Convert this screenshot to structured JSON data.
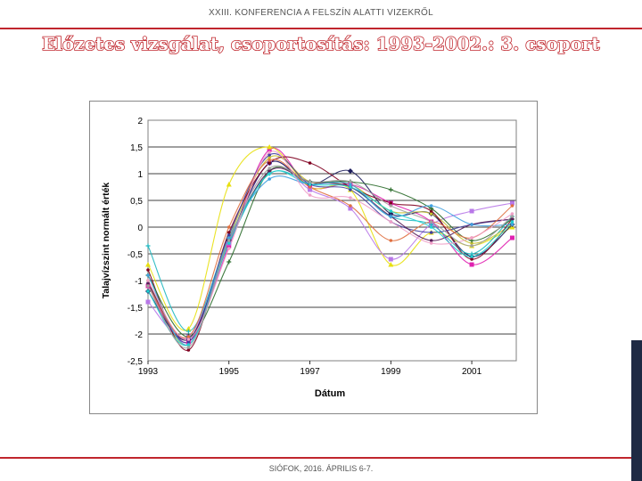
{
  "header": {
    "text": "XXIII. KONFERENCIA A FELSZÍN ALATTI VIZEKRŐL"
  },
  "title": "Előzetes vizsgálat, csoportosítás: 1993-2002.: 3. csoport",
  "footer": {
    "text": "SIÓFOK, 2016. ÁPRILIS 6-7."
  },
  "colors": {
    "accent": "#c0262d",
    "side_bar": "#1f2a44"
  },
  "chart_data": {
    "type": "line",
    "title": "",
    "xlabel": "Dátum",
    "ylabel": "Talajvízszint normált érték",
    "xlim": [
      1993,
      2002.1
    ],
    "ylim": [
      -2.5,
      2
    ],
    "x_ticks": [
      1993,
      1995,
      1997,
      1999,
      2001
    ],
    "x_tick_labels": [
      "1993",
      "1995",
      "1997",
      "1999",
      "2001"
    ],
    "y_ticks": [
      2,
      1.5,
      1,
      0.5,
      0,
      -0.5,
      -1,
      -1.5,
      -2,
      -2.5
    ],
    "y_tick_labels": [
      "2",
      "1,5",
      "1",
      "0,5",
      "0",
      "-0,5",
      "-1",
      "-1,5",
      "-2",
      "-2,5"
    ],
    "grid": "horizontal",
    "legend": "none",
    "x": [
      1993,
      1994,
      1995,
      1996,
      1997,
      1998,
      1999,
      2000,
      2001,
      2002
    ],
    "series": [
      {
        "values": [
          -1.1,
          -2.15,
          -0.35,
          1.45,
          0.75,
          0.8,
          0.45,
          0.1,
          -0.7,
          -0.2
        ],
        "color": "#e020b0",
        "marker": "square"
      },
      {
        "values": [
          -0.7,
          -1.9,
          0.8,
          1.5,
          0.75,
          0.7,
          -0.7,
          -0.1,
          -0.35,
          0.0
        ],
        "color": "#e8e010",
        "marker": "triangle"
      },
      {
        "values": [
          -1.4,
          -2.05,
          -0.3,
          1.2,
          0.7,
          0.35,
          -0.6,
          0.05,
          0.3,
          0.45
        ],
        "color": "#b878e8",
        "marker": "square"
      },
      {
        "values": [
          -1.2,
          -2.1,
          -0.25,
          1.2,
          0.8,
          1.05,
          0.25,
          0.25,
          -0.55,
          0.05
        ],
        "color": "#1c1c5c",
        "marker": "diamond"
      },
      {
        "values": [
          -0.35,
          -1.95,
          -0.2,
          1.0,
          0.85,
          0.75,
          0.2,
          0.05,
          -0.5,
          0.2
        ],
        "color": "#20b8c0",
        "marker": "cross"
      },
      {
        "values": [
          -1.0,
          -2.2,
          -0.2,
          1.3,
          0.85,
          0.8,
          0.3,
          0.25,
          -0.3,
          0.05
        ],
        "color": "#c8c030",
        "marker": "circle"
      },
      {
        "values": [
          -0.8,
          -2.3,
          -0.1,
          1.2,
          1.2,
          0.75,
          0.45,
          0.3,
          -0.6,
          0.15
        ],
        "color": "#800020",
        "marker": "circle"
      },
      {
        "values": [
          -0.9,
          -2.05,
          -0.65,
          1.05,
          0.85,
          0.85,
          0.7,
          0.35,
          -0.25,
          0.15
        ],
        "color": "#2a6c2a",
        "marker": "cross"
      },
      {
        "values": [
          -1.05,
          -2.15,
          -0.15,
          1.35,
          0.8,
          0.7,
          0.1,
          -0.1,
          0.05,
          0.15
        ],
        "color": "#4040a0",
        "marker": "circle"
      },
      {
        "values": [
          -1.05,
          -2.1,
          -0.3,
          1.05,
          0.85,
          0.75,
          0.2,
          -0.25,
          0.05,
          0.15
        ],
        "color": "#5a1e5a",
        "marker": "circle"
      },
      {
        "values": [
          -0.9,
          -2.2,
          -0.2,
          0.9,
          0.8,
          0.8,
          0.2,
          0.4,
          0.05,
          0.05
        ],
        "color": "#40a0e0",
        "marker": "circle"
      },
      {
        "values": [
          -1.1,
          -2.05,
          0.0,
          1.25,
          0.75,
          0.4,
          -0.25,
          0.1,
          -0.2,
          0.4
        ],
        "color": "#e07040",
        "marker": "circle"
      },
      {
        "values": [
          -1.2,
          -2.2,
          -0.3,
          1.0,
          0.8,
          0.75,
          0.3,
          0.0,
          -0.55,
          0.1
        ],
        "color": "#20d0d0",
        "marker": "circle"
      },
      {
        "values": [
          -1.0,
          -2.1,
          -0.4,
          1.4,
          0.6,
          0.55,
          0.1,
          -0.3,
          -0.2,
          0.25
        ],
        "color": "#f0a0c8",
        "marker": "circle"
      },
      {
        "values": [
          -1.1,
          -2.25,
          -0.25,
          1.1,
          0.85,
          0.85,
          0.4,
          0.1,
          -0.35,
          0.2
        ],
        "color": "#a0a0a0",
        "marker": "circle"
      }
    ]
  }
}
